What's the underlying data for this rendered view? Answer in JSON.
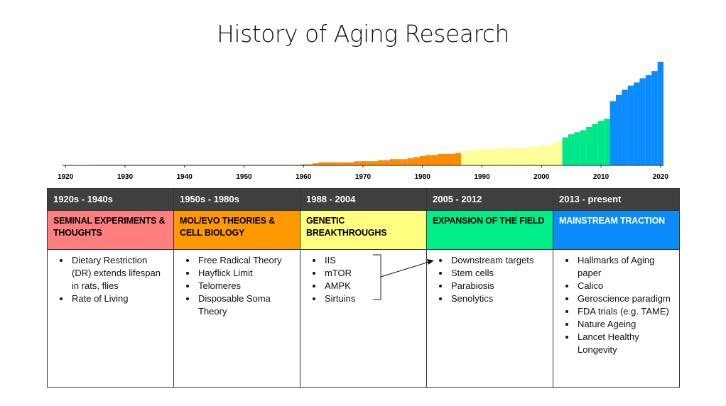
{
  "title": "History of Aging Research",
  "chart_data": {
    "type": "bar",
    "x": [
      1920,
      1921,
      1922,
      1923,
      1924,
      1925,
      1926,
      1927,
      1928,
      1929,
      1930,
      1931,
      1932,
      1933,
      1934,
      1935,
      1936,
      1937,
      1938,
      1939,
      1940,
      1941,
      1942,
      1943,
      1944,
      1945,
      1946,
      1947,
      1948,
      1949,
      1950,
      1951,
      1952,
      1953,
      1954,
      1955,
      1956,
      1957,
      1958,
      1959,
      1960,
      1961,
      1962,
      1963,
      1964,
      1965,
      1966,
      1967,
      1968,
      1969,
      1970,
      1971,
      1972,
      1973,
      1974,
      1975,
      1976,
      1977,
      1978,
      1979,
      1980,
      1981,
      1982,
      1983,
      1984,
      1985,
      1986,
      1987,
      1988,
      1989,
      1990,
      1991,
      1992,
      1993,
      1994,
      1995,
      1996,
      1997,
      1998,
      1999,
      2000,
      2001,
      2002,
      2003,
      2004,
      2005,
      2006,
      2007,
      2008,
      2009,
      2010,
      2011,
      2012,
      2013,
      2014,
      2015,
      2016,
      2017,
      2018,
      2019,
      2020
    ],
    "values": [
      0,
      0,
      0,
      0,
      0,
      0.5,
      0.5,
      0.5,
      0.5,
      0.5,
      0.5,
      0.5,
      0.5,
      0.5,
      0.5,
      0.5,
      0.5,
      0.5,
      0.5,
      0.5,
      0.5,
      0.5,
      0.5,
      0.5,
      0.5,
      0.5,
      0.5,
      0.5,
      0.5,
      0.5,
      0.5,
      0.5,
      0.5,
      0.5,
      0.5,
      0.5,
      0.5,
      0.5,
      0.5,
      0.5,
      1,
      1,
      2,
      3,
      3,
      3,
      3,
      3,
      3,
      4,
      4,
      4,
      4,
      5,
      5,
      6,
      6,
      6,
      7,
      8,
      9,
      10,
      10,
      11,
      11,
      11,
      12,
      14,
      14,
      15,
      16,
      16,
      16,
      16,
      17,
      17,
      17,
      17,
      18,
      18,
      19,
      19,
      21,
      23,
      27,
      30,
      32,
      34,
      37,
      40,
      43,
      45,
      62,
      68,
      73,
      77,
      80,
      84,
      87,
      91,
      100
    ],
    "colors": [
      "#e0782a",
      "#e0782a",
      "#e0782a",
      "#e0782a",
      "#e0782a",
      "#e0782a",
      "#e0782a",
      "#e0782a",
      "#e0782a",
      "#e0782a",
      "#e0782a",
      "#e0782a",
      "#e0782a",
      "#e0782a",
      "#e0782a",
      "#e0782a",
      "#e0782a",
      "#e0782a",
      "#e0782a",
      "#e0782a",
      "#e0782a",
      "#e0782a",
      "#e0782a",
      "#e0782a",
      "#e0782a",
      "#e0782a",
      "#e0782a",
      "#e0782a",
      "#e0782a",
      "#e0782a",
      "#e0782a",
      "#e0782a",
      "#e0782a",
      "#e0782a",
      "#e0782a",
      "#e0782a",
      "#e0782a",
      "#e0782a",
      "#e0782a",
      "#e0782a",
      "#ff8c00",
      "#ff8c00",
      "#ff8c00",
      "#ff8c00",
      "#ff8c00",
      "#ff8c00",
      "#ff8c00",
      "#ff8c00",
      "#ff8c00",
      "#ff8c00",
      "#ff8c00",
      "#ff8c00",
      "#ff8c00",
      "#ff8c00",
      "#ff8c00",
      "#ff8c00",
      "#ff8c00",
      "#ff8c00",
      "#ff8c00",
      "#ff8c00",
      "#ff8c00",
      "#ff8c00",
      "#ff8c00",
      "#ff8c00",
      "#ff8c00",
      "#ff8c00",
      "#ff8c00",
      "#ffff99",
      "#ffff99",
      "#ffff99",
      "#ffff99",
      "#ffff99",
      "#ffff99",
      "#ffff99",
      "#ffff99",
      "#ffff99",
      "#ffff99",
      "#ffff99",
      "#ffff99",
      "#ffff99",
      "#ffff99",
      "#ffff99",
      "#ffff99",
      "#ffff99",
      "#00e68a",
      "#00e68a",
      "#00e68a",
      "#00e68a",
      "#00e68a",
      "#00e68a",
      "#00e68a",
      "#00e68a",
      "#0a8cff",
      "#0a8cff",
      "#0a8cff",
      "#0a8cff",
      "#0a8cff",
      "#0a8cff",
      "#0a8cff",
      "#0a8cff",
      "#0a8cff"
    ],
    "xlim": [
      1919.5,
      2020.5
    ],
    "ylim": [
      0,
      100
    ],
    "xticks": [
      1920,
      1930,
      1940,
      1950,
      1960,
      1970,
      1980,
      1990,
      2000,
      2010,
      2020
    ]
  },
  "table": {
    "columns": [
      {
        "period": "1920s - 1940s",
        "category": "SEMINAL EXPERIMENTS & THOUGHTS",
        "color": "#ff7f7f",
        "text_color": "#000",
        "items": [
          "Dietary Restriction (DR) extends lifespan in rats, flies",
          "Rate of Living"
        ]
      },
      {
        "period": "1950s - 1980s",
        "category": "MOL/EVO THEORIES & CELL BIOLOGY",
        "color": "#ff9900",
        "text_color": "#000",
        "items": [
          "Free Radical Theory",
          "Hayflick Limit",
          "Telomeres",
          "Disposable Soma Theory"
        ]
      },
      {
        "period": "1988 - 2004",
        "category": "GENETIC BREAKTHROUGHS",
        "color": "#ffff80",
        "text_color": "#000",
        "items": [
          "IIS",
          "mTOR",
          "AMPK",
          "Sirtuins"
        ]
      },
      {
        "period": "2005 - 2012",
        "category": "EXPANSION OF THE FIELD",
        "color": "#00ee88",
        "text_color": "#000",
        "items": [
          "Downstream targets",
          "Stem cells",
          "Parabiosis",
          "Senolytics"
        ]
      },
      {
        "period": "2013 - present",
        "category": "MAINSTREAM TRACTION",
        "color": "#0b8cf8",
        "text_color": "#fff",
        "items": [
          "Hallmarks of Aging paper",
          "Calico",
          "Geroscience paradigm",
          "FDA trials (e.g. TAME)",
          "Nature Ageing",
          "Lancet Healthy Longevity"
        ]
      }
    ]
  }
}
